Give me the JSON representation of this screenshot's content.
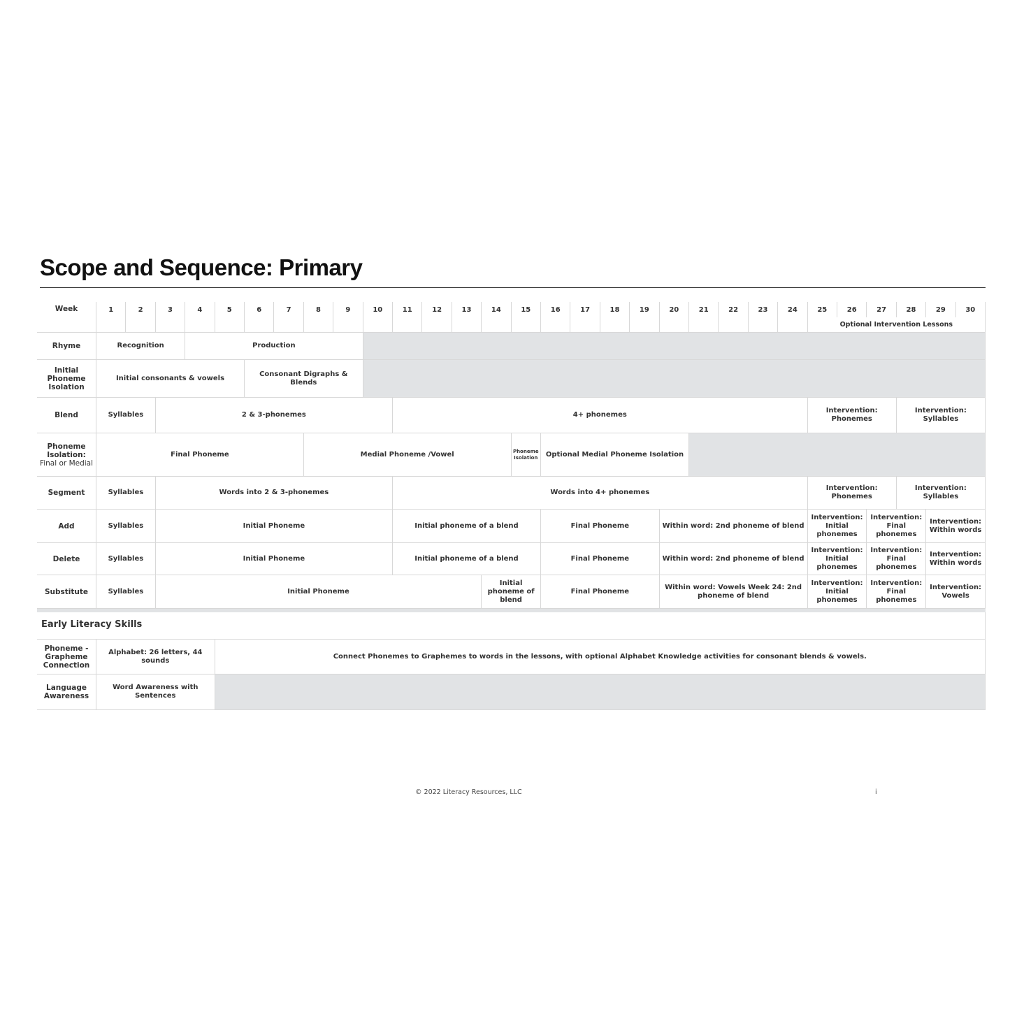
{
  "title": "Scope and Sequence: Primary",
  "header": {
    "label": "Week",
    "weeks": [
      "1",
      "2",
      "3",
      "4",
      "5",
      "6",
      "7",
      "8",
      "9",
      "10",
      "11",
      "12",
      "13",
      "14",
      "15",
      "16",
      "17",
      "18",
      "19",
      "20",
      "21",
      "22",
      "23",
      "24",
      "25",
      "26",
      "27",
      "28",
      "29",
      "30"
    ],
    "optional_label": "Optional Intervention Lessons"
  },
  "shade_color": "#e1e3e5",
  "rows": [
    {
      "label": "Rhyme",
      "cells": [
        {
          "text": "Recognition",
          "span": 3
        },
        {
          "text": "Production",
          "span": 6
        },
        {
          "text": "",
          "span": 21,
          "shade": true
        }
      ]
    },
    {
      "label": "Initial Phoneme Isolation",
      "cells": [
        {
          "text": "Initial consonants & vowels",
          "span": 5
        },
        {
          "text": "Consonant Digraphs & Blends",
          "span": 4
        },
        {
          "text": "",
          "span": 21,
          "shade": true
        }
      ]
    },
    {
      "label": "Blend",
      "cells": [
        {
          "text": "Syllables",
          "span": 2
        },
        {
          "text": "2 & 3-phonemes",
          "span": 8
        },
        {
          "text": "4+ phonemes",
          "span": 14
        },
        {
          "text": "Intervention: Phonemes",
          "span": 3
        },
        {
          "text": "Intervention: Syllables",
          "span": 3
        }
      ]
    },
    {
      "label": "Phoneme Isolation:",
      "sublabel": "Final or Medial",
      "cells": [
        {
          "text": "Final Phoneme",
          "span": 7
        },
        {
          "text": "Medial Phoneme /Vowel",
          "span": 7
        },
        {
          "text": "Phoneme Isolation",
          "span": 1,
          "tiny": true
        },
        {
          "text": "Optional Medial Phoneme Isolation",
          "span": 5
        },
        {
          "text": "",
          "span": 10,
          "shade": true
        }
      ]
    },
    {
      "label": "Segment",
      "cells": [
        {
          "text": "Syllables",
          "span": 2
        },
        {
          "text": "Words into 2 & 3-phonemes",
          "span": 8
        },
        {
          "text": "Words into 4+ phonemes",
          "span": 14
        },
        {
          "text": "Intervention: Phonemes",
          "span": 3
        },
        {
          "text": "Intervention: Syllables",
          "span": 3
        }
      ]
    },
    {
      "label": "Add",
      "cells": [
        {
          "text": "Syllables",
          "span": 2
        },
        {
          "text": "Initial Phoneme",
          "span": 8
        },
        {
          "text": "Initial phoneme of a blend",
          "span": 5
        },
        {
          "text": "Final Phoneme",
          "span": 4
        },
        {
          "text": "Within word: 2nd phoneme of blend",
          "span": 5
        },
        {
          "text": "Intervention: Initial phonemes",
          "span": 2
        },
        {
          "text": "Intervention: Final phonemes",
          "span": 2
        },
        {
          "text": "Intervention: Within words",
          "span": 2
        }
      ]
    },
    {
      "label": "Delete",
      "cells": [
        {
          "text": "Syllables",
          "span": 2
        },
        {
          "text": "Initial Phoneme",
          "span": 8
        },
        {
          "text": "Initial phoneme of a blend",
          "span": 5
        },
        {
          "text": "Final Phoneme",
          "span": 4
        },
        {
          "text": "Within word: 2nd phoneme of blend",
          "span": 5
        },
        {
          "text": "Intervention: Initial phonemes",
          "span": 2
        },
        {
          "text": "Intervention: Final phonemes",
          "span": 2
        },
        {
          "text": "Intervention: Within words",
          "span": 2
        }
      ]
    },
    {
      "label": "Substitute",
      "cells": [
        {
          "text": "Syllables",
          "span": 2
        },
        {
          "text": "Initial Phoneme",
          "span": 11
        },
        {
          "text": "Initial phoneme of blend",
          "span": 2
        },
        {
          "text": "Final Phoneme",
          "span": 4
        },
        {
          "text": "Within word: Vowels Week 24: 2nd phoneme of blend",
          "span": 5
        },
        {
          "text": "Intervention: Initial phonemes",
          "span": 2
        },
        {
          "text": "Intervention: Final phonemes",
          "span": 2
        },
        {
          "text": "Intervention: Vowels",
          "span": 2
        }
      ]
    }
  ],
  "section_title": "Early Literacy Skills",
  "literacy_rows": [
    {
      "label": "Phoneme - Grapheme Connection",
      "cells": [
        {
          "text": "Alphabet: 26 letters, 44 sounds",
          "span": 4
        },
        {
          "text": "Connect Phonemes to Graphemes to words in the lessons, with optional Alphabet Knowledge activities for consonant blends & vowels.",
          "span": 26
        }
      ]
    },
    {
      "label": "Language Awareness",
      "cells": [
        {
          "text": "Word Awareness with Sentences",
          "span": 4
        },
        {
          "text": "",
          "span": 26,
          "shade": true
        }
      ]
    }
  ],
  "footer": {
    "copyright": "© 2022 Literacy Resources, LLC",
    "page": "i"
  }
}
